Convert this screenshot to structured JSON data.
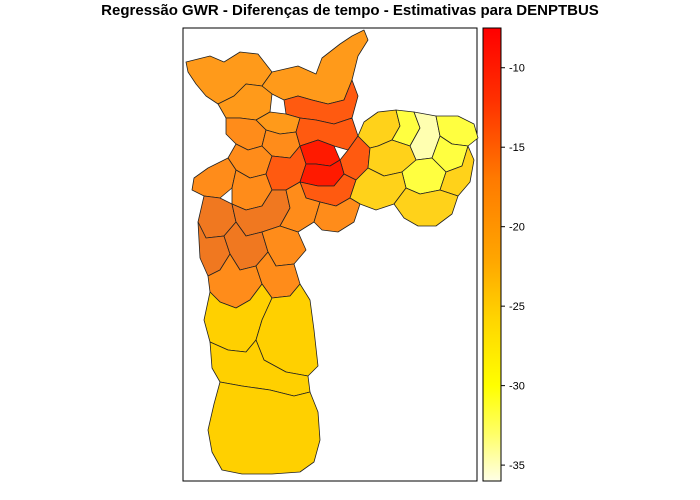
{
  "title": "Regressão GWR - Diferenças de tempo - Estimativas para DENPTBUS",
  "legend": {
    "type": "continuous color scale",
    "placement": "right",
    "ticks": [
      "-10",
      "-15",
      "-20",
      "-25",
      "-30",
      "-35"
    ],
    "tick_values": [
      -10,
      -15,
      -20,
      -25,
      -30,
      -35
    ],
    "range": [
      -36,
      -7.5
    ],
    "gradient_stops": [
      {
        "value": -36,
        "color": "#ffffe6"
      },
      {
        "value": -33,
        "color": "#ffff66"
      },
      {
        "value": -30,
        "color": "#ffff00"
      },
      {
        "value": -26,
        "color": "#ffd700"
      },
      {
        "value": -22,
        "color": "#ffa500"
      },
      {
        "value": -17,
        "color": "#ff7a00"
      },
      {
        "value": -12,
        "color": "#ff3000"
      },
      {
        "value": -7.5,
        "color": "#ff0000"
      }
    ]
  },
  "map_regions": {
    "center_core_color": "#ff1a00",
    "center_ring_color": "#ff5a10",
    "inner_west_color": "#ff8c1a",
    "southwest_color": "#f07820",
    "north_color": "#ff9a1a",
    "east_outer_color": "#ffd21a",
    "east_inner_color": "#ffff40",
    "east_pale_color": "#ffffb0",
    "south_color": "#ffd000"
  }
}
